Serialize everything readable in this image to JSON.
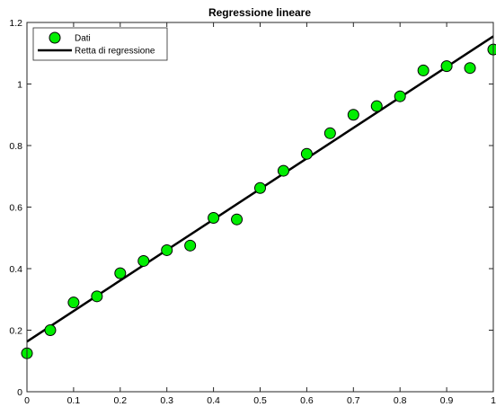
{
  "chart_data": {
    "type": "scatter",
    "title": "Regressione lineare",
    "xlabel": "",
    "ylabel": "",
    "xlim": [
      0,
      1
    ],
    "ylim": [
      0,
      1.2
    ],
    "xticks": [
      0,
      0.1,
      0.2,
      0.3,
      0.4,
      0.5,
      0.6,
      0.7,
      0.8,
      0.9,
      1
    ],
    "xtick_labels": [
      "0",
      "0.1",
      "0.2",
      "0.3",
      "0.4",
      "0.5",
      "0.6",
      "0.7",
      "0.8",
      "0.9",
      "1"
    ],
    "yticks": [
      0,
      0.2,
      0.4,
      0.6,
      0.8,
      1,
      1.2
    ],
    "ytick_labels": [
      "0",
      "0.2",
      "0.4",
      "0.6",
      "0.8",
      "1",
      "1.2"
    ],
    "grid": false,
    "legend_location": "top-left",
    "series": [
      {
        "name": "Dati",
        "kind": "scatter",
        "color": "#00ee00",
        "x": [
          0,
          0.05,
          0.1,
          0.15,
          0.2,
          0.25,
          0.3,
          0.35,
          0.4,
          0.45,
          0.5,
          0.55,
          0.6,
          0.65,
          0.7,
          0.75,
          0.8,
          0.85,
          0.9,
          0.95,
          1
        ],
        "y": [
          0.125,
          0.2,
          0.29,
          0.31,
          0.385,
          0.425,
          0.46,
          0.475,
          0.565,
          0.56,
          0.662,
          0.718,
          0.773,
          0.84,
          0.9,
          0.928,
          0.96,
          1.044,
          1.058,
          1.052,
          1.112
        ]
      },
      {
        "name": "Retta di regressione",
        "kind": "line",
        "color": "#000000",
        "x": [
          0,
          1
        ],
        "y": [
          0.163,
          1.155
        ]
      }
    ]
  }
}
